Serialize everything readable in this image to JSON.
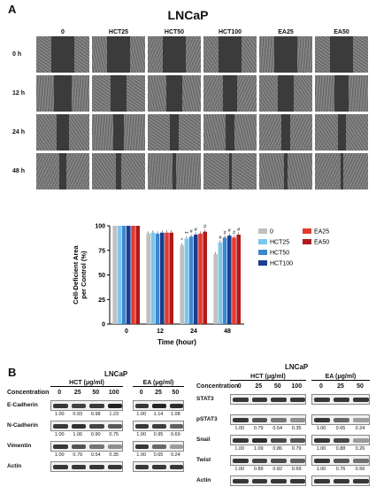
{
  "panel_a": {
    "letter": "A",
    "title": "LNCaP",
    "columns": [
      "0",
      "HCT25",
      "HCT50",
      "HCT100",
      "EA25",
      "EA50"
    ],
    "rows": [
      "0 h",
      "12 h",
      "24 h",
      "48 h"
    ],
    "scratch_fraction": [
      [
        0.42,
        0.42,
        0.42,
        0.42,
        0.42,
        0.42
      ],
      [
        0.32,
        0.3,
        0.3,
        0.28,
        0.3,
        0.28
      ],
      [
        0.22,
        0.2,
        0.18,
        0.16,
        0.17,
        0.15
      ],
      [
        0.12,
        0.1,
        0.08,
        0.05,
        0.07,
        0.05
      ]
    ]
  },
  "chart_data": {
    "type": "bar",
    "categories": [
      "0",
      "12",
      "24",
      "48"
    ],
    "xlabel": "Time (hour)",
    "ylabel": "Cell-Deficient Area per Control (%)",
    "ylim": [
      0,
      100
    ],
    "yticks": [
      "0",
      "25",
      "50",
      "75",
      "100"
    ],
    "series": [
      {
        "name": "0",
        "color": "#c0c0c0",
        "values": [
          100,
          92,
          80,
          71
        ]
      },
      {
        "name": "HCT25",
        "color": "#7cc6ee",
        "values": [
          100,
          93,
          87,
          83
        ]
      },
      {
        "name": "HCT50",
        "color": "#3e86cf",
        "values": [
          100,
          92,
          89,
          88
        ]
      },
      {
        "name": "HCT100",
        "color": "#1a3d8f",
        "values": [
          100,
          93,
          91,
          90
        ]
      },
      {
        "name": "EA25",
        "color": "#e53a2f",
        "values": [
          100,
          93,
          92,
          88
        ]
      },
      {
        "name": "EA50",
        "color": "#b01a1a",
        "values": [
          100,
          93,
          94,
          91
        ]
      }
    ],
    "annotations": [
      "*",
      "**",
      "#",
      "#",
      "#",
      "#",
      "#",
      "#",
      "#",
      "#"
    ],
    "legend_position": "top-right"
  },
  "panel_b": {
    "letter": "B",
    "left": {
      "title": "LNCaP",
      "concentration_label": "Concentration",
      "hct_group": "HCT (μg/ml)",
      "ea_group": "EA (μg/ml)",
      "hct_conc": [
        "0",
        "25",
        "50",
        "100"
      ],
      "ea_conc": [
        "0",
        "25",
        "50"
      ],
      "rows": [
        {
          "protein": "E-Cadherin",
          "hct": [
            "1.00",
            "0.93",
            "0.98",
            "1.23"
          ],
          "ea": [
            "1.00",
            "1.14",
            "1.08"
          ]
        },
        {
          "protein": "N-Cadherin",
          "hct": [
            "1.00",
            "1.06",
            "0.90",
            "0.75"
          ],
          "ea": [
            "1.00",
            "0.95",
            "0.69"
          ]
        },
        {
          "protein": "Vimentin",
          "hct": [
            "1.00",
            "0.79",
            "0.54",
            "0.35"
          ],
          "ea": [
            "1.00",
            "0.65",
            "0.24"
          ]
        },
        {
          "protein": "Actin",
          "hct": [],
          "ea": []
        }
      ]
    },
    "right": {
      "title": "LNCaP",
      "concentration_label": "Concentration",
      "hct_group": "HCT (μg/ml)",
      "ea_group": "EA (μg/ml)",
      "hct_conc": [
        "0",
        "25",
        "50",
        "100"
      ],
      "ea_conc": [
        "0",
        "25",
        "50"
      ],
      "rows": [
        {
          "protein": "STAT3",
          "hct": [],
          "ea": []
        },
        {
          "protein": "pSTAT3",
          "hct": [
            "1.00",
            "0.79",
            "0.54",
            "0.35"
          ],
          "ea": [
            "1.00",
            "0.65",
            "0.24"
          ]
        },
        {
          "protein": "Snail",
          "hct": [
            "1.00",
            "1.09",
            "0.86",
            "0.79"
          ],
          "ea": [
            "1.00",
            "0.88",
            "0.26"
          ]
        },
        {
          "protein": "Twist",
          "hct": [
            "1.00",
            "0.89",
            "0.82",
            "0.69"
          ],
          "ea": [
            "1.00",
            "0.76",
            "0.56"
          ]
        },
        {
          "protein": "Actin",
          "hct": [],
          "ea": []
        }
      ]
    }
  }
}
